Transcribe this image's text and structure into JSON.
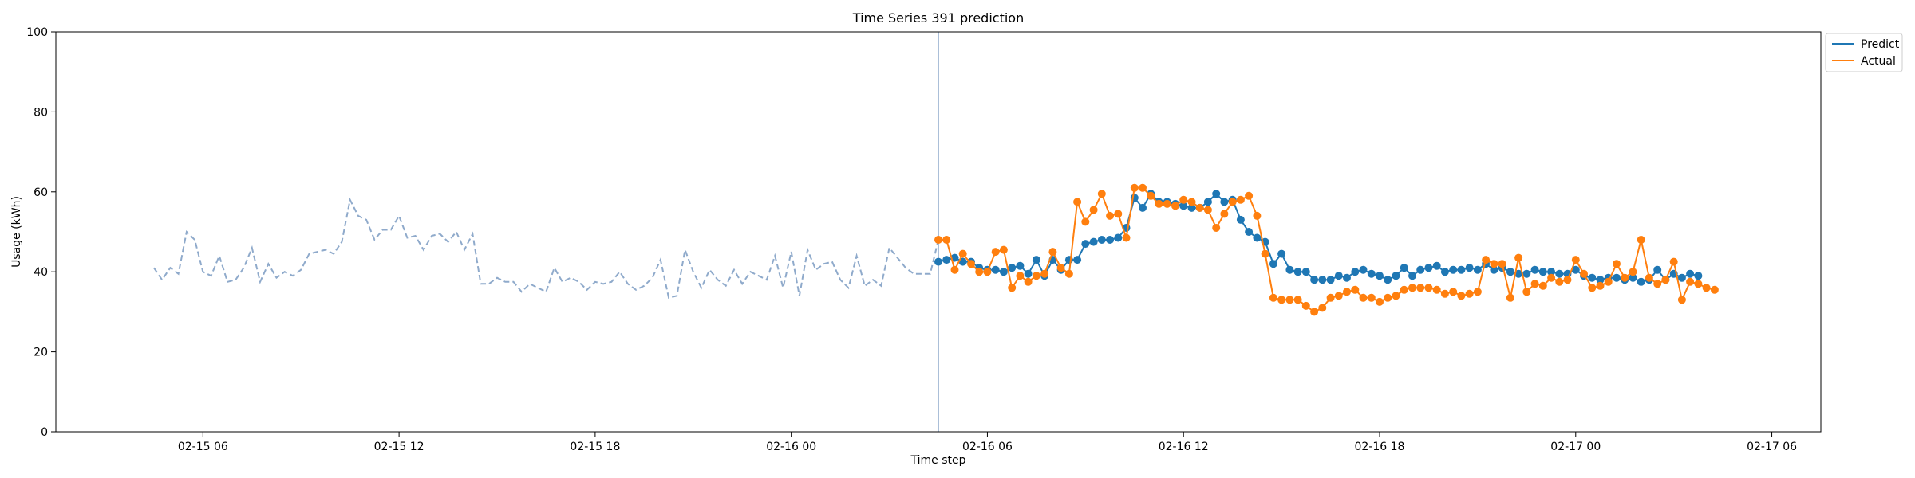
{
  "chart_data": {
    "type": "line",
    "title": "Time Series 391 prediction",
    "xlabel": "Time step",
    "ylabel": "Usage (kWh)",
    "ylim": [
      0,
      100
    ],
    "yticks": [
      0,
      20,
      40,
      60,
      80,
      100
    ],
    "xlim": [
      "2025-02-15 01:30",
      "2025-02-17 07:30"
    ],
    "xticks": [
      {
        "label": "02-15 06",
        "t": "2025-02-15 06:00"
      },
      {
        "label": "02-15 12",
        "t": "2025-02-15 12:00"
      },
      {
        "label": "02-15 18",
        "t": "2025-02-15 18:00"
      },
      {
        "label": "02-16 00",
        "t": "2025-02-16 00:00"
      },
      {
        "label": "02-16 06",
        "t": "2025-02-16 06:00"
      },
      {
        "label": "02-16 12",
        "t": "2025-02-16 12:00"
      },
      {
        "label": "02-16 18",
        "t": "2025-02-16 18:00"
      },
      {
        "label": "02-17 00",
        "t": "2025-02-17 00:00"
      },
      {
        "label": "02-17 06",
        "t": "2025-02-17 06:00"
      }
    ],
    "grid": false,
    "legend_position": "outside-top-right",
    "forecast_start": "2025-02-16 04:30",
    "history": {
      "start": "2025-02-15 04:30",
      "step_minutes": 15,
      "color": "#8faacb",
      "style": "dashed",
      "values": [
        41,
        38,
        41,
        39.5,
        50,
        48,
        40,
        39,
        44,
        37.5,
        38,
        41,
        46,
        37.5,
        42,
        38.5,
        40,
        39,
        40.5,
        44.5,
        45,
        45.5,
        44.5,
        47.5,
        58,
        54,
        53,
        48,
        50.5,
        50.5,
        54,
        48.5,
        49,
        45.5,
        49,
        49.5,
        47.5,
        50,
        45.5,
        49.5,
        37,
        37,
        38.5,
        37.5,
        37.5,
        35,
        37,
        36,
        35,
        41,
        37.5,
        38.5,
        37.5,
        35.5,
        37.5,
        37,
        37.5,
        40,
        37,
        35.5,
        36.5,
        38.5,
        43,
        33.5,
        34,
        45.5,
        40,
        36,
        40.5,
        38,
        36.5,
        40.5,
        37,
        40,
        39,
        38,
        44,
        36,
        45,
        34,
        45.5,
        40.5,
        42,
        42.5,
        38,
        36,
        44,
        36.5,
        38,
        36.5,
        46,
        43.5,
        41,
        39.5,
        39.5,
        39.5,
        48
      ]
    },
    "series": [
      {
        "name": "Predict",
        "color": "#1f77b4",
        "start": "2025-02-16 04:30",
        "step_minutes": 15,
        "values": [
          42.5,
          43,
          43.5,
          42.5,
          42.5,
          41,
          40.5,
          40.5,
          40,
          41,
          41.5,
          39.5,
          43,
          39,
          43,
          40.5,
          43,
          43,
          47,
          47.5,
          48,
          48,
          48.5,
          51,
          58.5,
          56,
          59.5,
          57.5,
          57.5,
          57,
          56.5,
          56,
          56,
          57.5,
          59.5,
          57.5,
          58,
          53,
          50,
          48.5,
          47.5,
          42,
          44.5,
          40.5,
          40,
          40,
          38,
          38,
          38,
          39,
          38.5,
          40,
          40.5,
          39.5,
          39,
          38,
          39,
          41,
          39,
          40.5,
          41,
          41.5,
          40,
          40.5,
          40.5,
          41,
          40.5,
          42,
          40.5,
          41,
          40,
          39.5,
          39.5,
          40.5,
          40,
          40,
          39.5,
          39.5,
          40.5,
          39,
          38.5,
          38,
          38.5,
          38.5,
          38,
          38.5,
          37.5,
          38,
          40.5,
          38,
          39.5,
          38.5,
          39.5,
          39
        ]
      },
      {
        "name": "Actual",
        "color": "#ff7f0e",
        "start": "2025-02-16 04:30",
        "step_minutes": 15,
        "values": [
          48,
          48,
          40.5,
          44.5,
          42,
          40,
          40,
          45,
          45.5,
          36,
          39,
          37.5,
          39,
          39.5,
          45,
          41,
          39.5,
          57.5,
          52.5,
          55.5,
          59.5,
          54,
          54.5,
          48.5,
          61,
          61,
          59,
          57,
          57,
          56.5,
          58,
          57.5,
          56,
          55.5,
          51,
          54.5,
          57.5,
          58,
          59,
          54,
          44.5,
          33.5,
          33,
          33,
          33,
          31.5,
          30,
          31,
          33.5,
          34,
          35,
          35.5,
          33.5,
          33.5,
          32.5,
          33.5,
          34,
          35.5,
          36,
          36,
          36,
          35.5,
          34.5,
          35,
          34,
          34.5,
          35,
          43,
          42,
          42,
          33.5,
          43.5,
          35,
          37,
          36.5,
          38.5,
          37.5,
          38,
          43,
          39.5,
          36,
          36.5,
          37.5,
          42,
          38.5,
          40,
          48,
          38.5,
          37,
          38,
          42.5,
          33,
          37.5,
          37,
          36,
          35.5
        ]
      }
    ]
  }
}
